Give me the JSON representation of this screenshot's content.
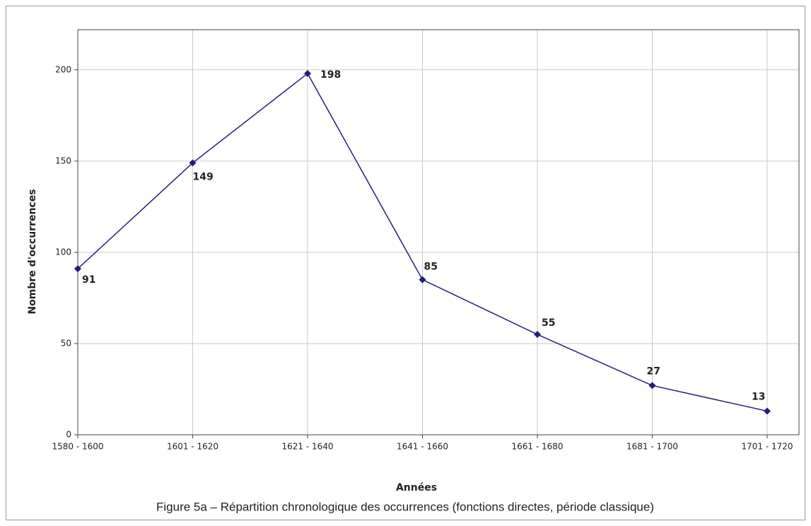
{
  "chart_data": {
    "type": "line",
    "categories": [
      "1580 - 1600",
      "1601 - 1620",
      "1621 - 1640",
      "1641 - 1660",
      "1661 - 1680",
      "1681 - 1700",
      "1701 - 1720"
    ],
    "series": [
      {
        "color": "#1f1f7a",
        "values": [
          91,
          149,
          198,
          85,
          55,
          27,
          13
        ]
      }
    ],
    "ylim": [
      0,
      222
    ],
    "yticks": [
      0,
      50,
      100,
      150,
      200
    ],
    "grid": true,
    "x_label": "Années",
    "y_label": "Nombre d'occurrences",
    "caption": "Figure 5a – Répartition chronologique des occurrences (fonctions directes, période classique)"
  }
}
